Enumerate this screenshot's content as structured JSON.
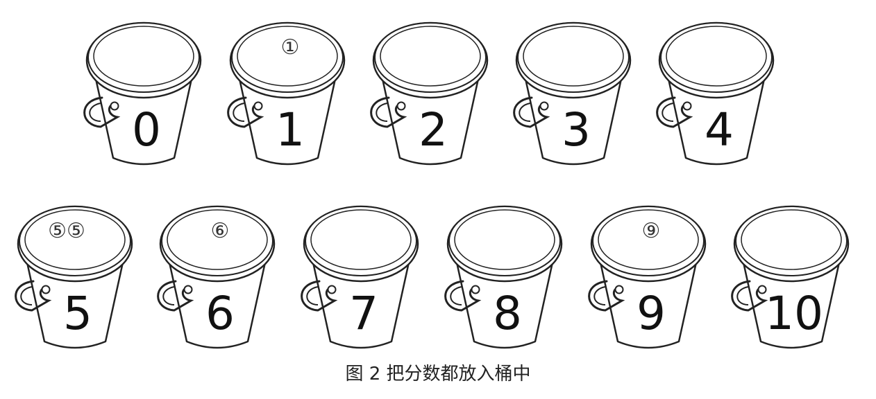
{
  "caption": "图 2 把分数都放入桶中",
  "colors": {
    "stroke": "#222222",
    "fill": "#ffffff",
    "text": "#111111"
  },
  "icon": "bucket-icon",
  "buckets": [
    {
      "number": "0",
      "lid": ""
    },
    {
      "number": "1",
      "lid": "①"
    },
    {
      "number": "2",
      "lid": ""
    },
    {
      "number": "3",
      "lid": ""
    },
    {
      "number": "4",
      "lid": ""
    },
    {
      "number": "5",
      "lid": "⑤⑤"
    },
    {
      "number": "6",
      "lid": "⑥"
    },
    {
      "number": "7",
      "lid": ""
    },
    {
      "number": "8",
      "lid": ""
    },
    {
      "number": "9",
      "lid": "⑨"
    },
    {
      "number": "10",
      "lid": ""
    }
  ]
}
